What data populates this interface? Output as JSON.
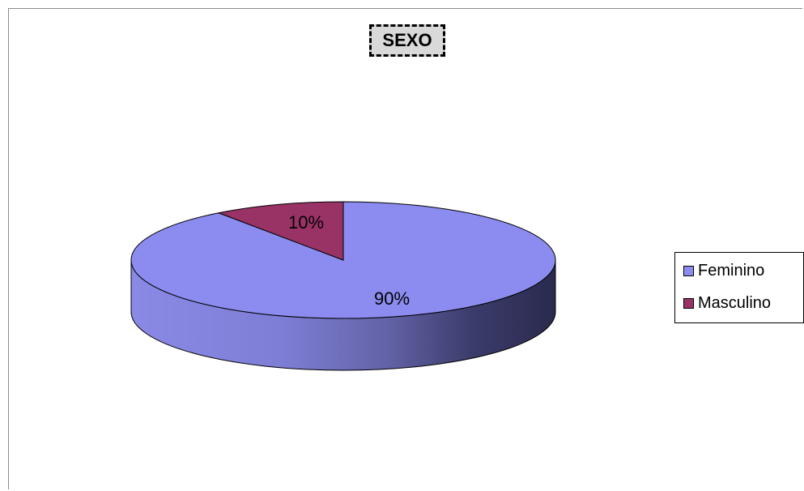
{
  "chart_data": {
    "type": "pie",
    "title": "SEXO",
    "categories": [
      "Feminino",
      "Masculino"
    ],
    "values": [
      90,
      10
    ],
    "data_labels": [
      "90%",
      "10%"
    ],
    "colors": [
      "#8c8cf0",
      "#993366"
    ],
    "legend_position": "right",
    "style": "3d"
  }
}
